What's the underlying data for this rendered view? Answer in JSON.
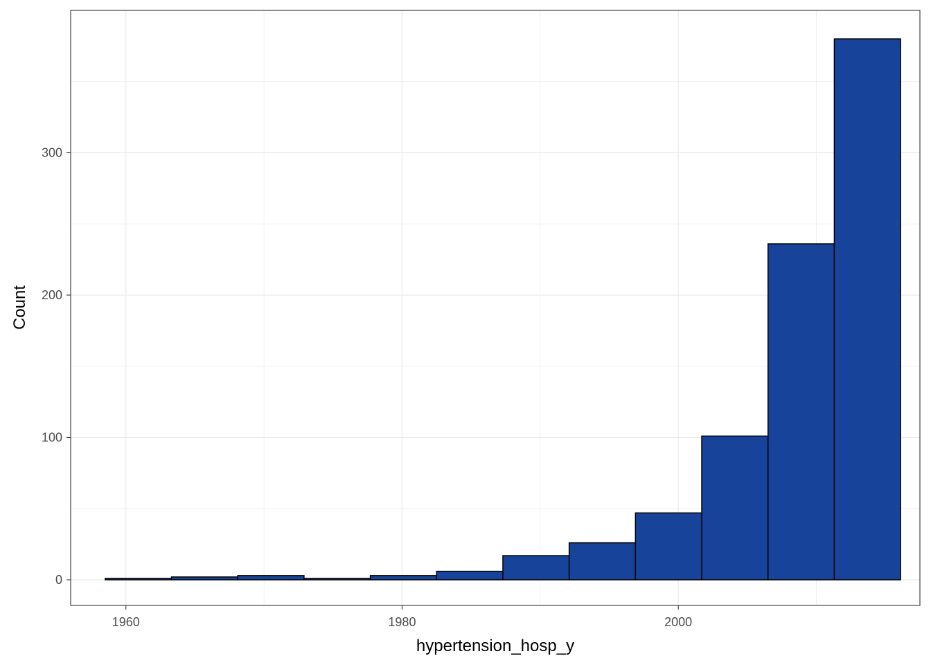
{
  "chart_data": {
    "type": "bar",
    "xlabel": "hypertension_hosp_y",
    "ylabel": "Count",
    "xlim": [
      1956,
      2017.5
    ],
    "ylim": [
      -18,
      400
    ],
    "x_ticks": [
      1960,
      1980,
      2000
    ],
    "x_tick_labels": [
      "1960",
      "1980",
      "2000"
    ],
    "y_ticks": [
      0,
      100,
      200,
      300
    ],
    "y_tick_labels": [
      "0",
      "100",
      "200",
      "300"
    ],
    "grid": true,
    "bins": [
      {
        "x0": 1958.5,
        "x1": 1963.3,
        "count": 1
      },
      {
        "x0": 1963.3,
        "x1": 1968.1,
        "count": 2
      },
      {
        "x0": 1968.1,
        "x1": 1972.9,
        "count": 3
      },
      {
        "x0": 1972.9,
        "x1": 1977.7,
        "count": 1
      },
      {
        "x0": 1977.7,
        "x1": 1982.5,
        "count": 3
      },
      {
        "x0": 1982.5,
        "x1": 1987.3,
        "count": 6
      },
      {
        "x0": 1987.3,
        "x1": 1992.1,
        "count": 17
      },
      {
        "x0": 1992.1,
        "x1": 1996.9,
        "count": 26
      },
      {
        "x0": 1996.9,
        "x1": 2001.7,
        "count": 47
      },
      {
        "x0": 2001.7,
        "x1": 2006.5,
        "count": 101
      },
      {
        "x0": 2006.5,
        "x1": 2011.3,
        "count": 236
      },
      {
        "x0": 2011.3,
        "x1": 2016.1,
        "count": 380
      }
    ],
    "fill_color": "#17449A",
    "outline_color": "#000000",
    "grid_color": "#EBEBEB",
    "panel_border_color": "#333333"
  }
}
